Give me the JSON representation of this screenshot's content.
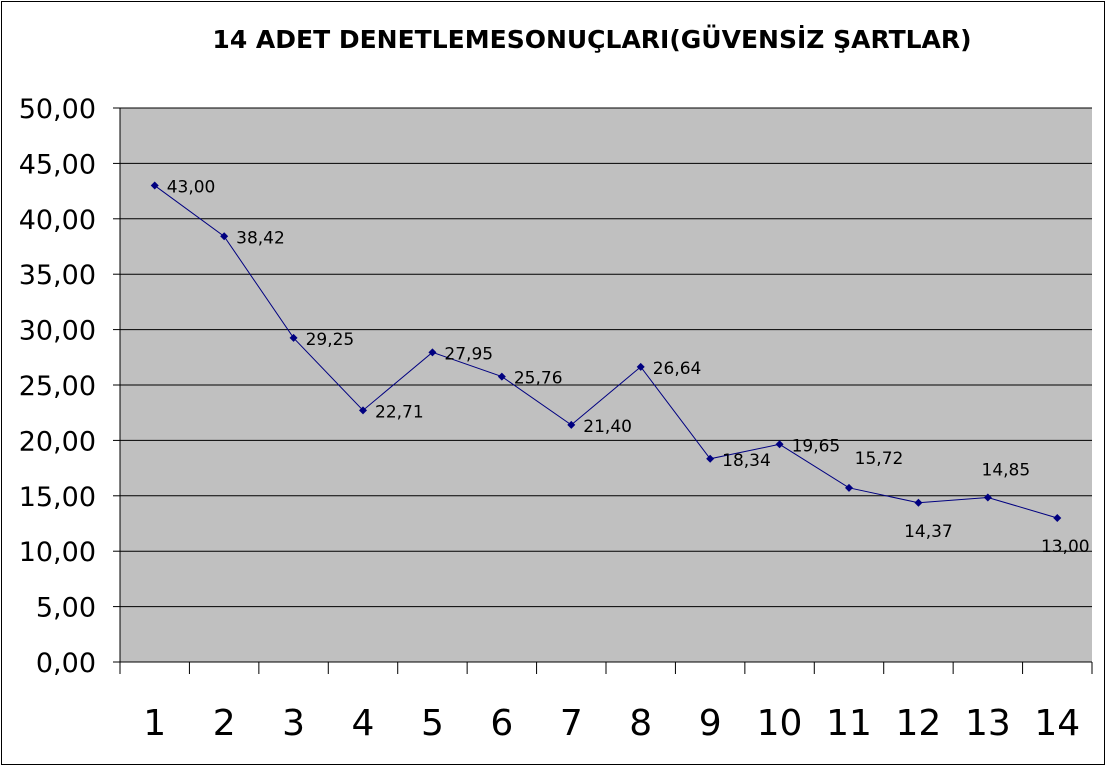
{
  "chart_data": {
    "type": "line",
    "title": "14 ADET DENETLEMESONUÇLARI(GÜVENSİZ ŞARTLAR)",
    "xlabel": "",
    "ylabel": "",
    "categories": [
      "1",
      "2",
      "3",
      "4",
      "5",
      "6",
      "7",
      "8",
      "9",
      "10",
      "11",
      "12",
      "13",
      "14"
    ],
    "series": [
      {
        "values": [
          43.0,
          38.42,
          29.25,
          22.71,
          27.95,
          25.76,
          21.4,
          26.64,
          18.34,
          19.65,
          15.72,
          14.37,
          14.85,
          13.0
        ],
        "data_labels": [
          "43,00",
          "38,42",
          "29,25",
          "22,71",
          "27,95",
          "25,76",
          "21,40",
          "26,64",
          "18,34",
          "19,65",
          "15,72",
          "14,37",
          "14,85",
          "13,00"
        ]
      }
    ],
    "y_tick_labels": [
      "0,00",
      "5,00",
      "10,00",
      "15,00",
      "20,00",
      "25,00",
      "30,00",
      "35,00",
      "40,00",
      "45,00",
      "50,00"
    ],
    "ylim": [
      0,
      50
    ],
    "y_step": 5,
    "grid": true,
    "legend": "none",
    "colors": {
      "plot_background": "#c0c0c0",
      "line": "#000080",
      "marker": "#000080",
      "gridline": "#000000"
    }
  }
}
